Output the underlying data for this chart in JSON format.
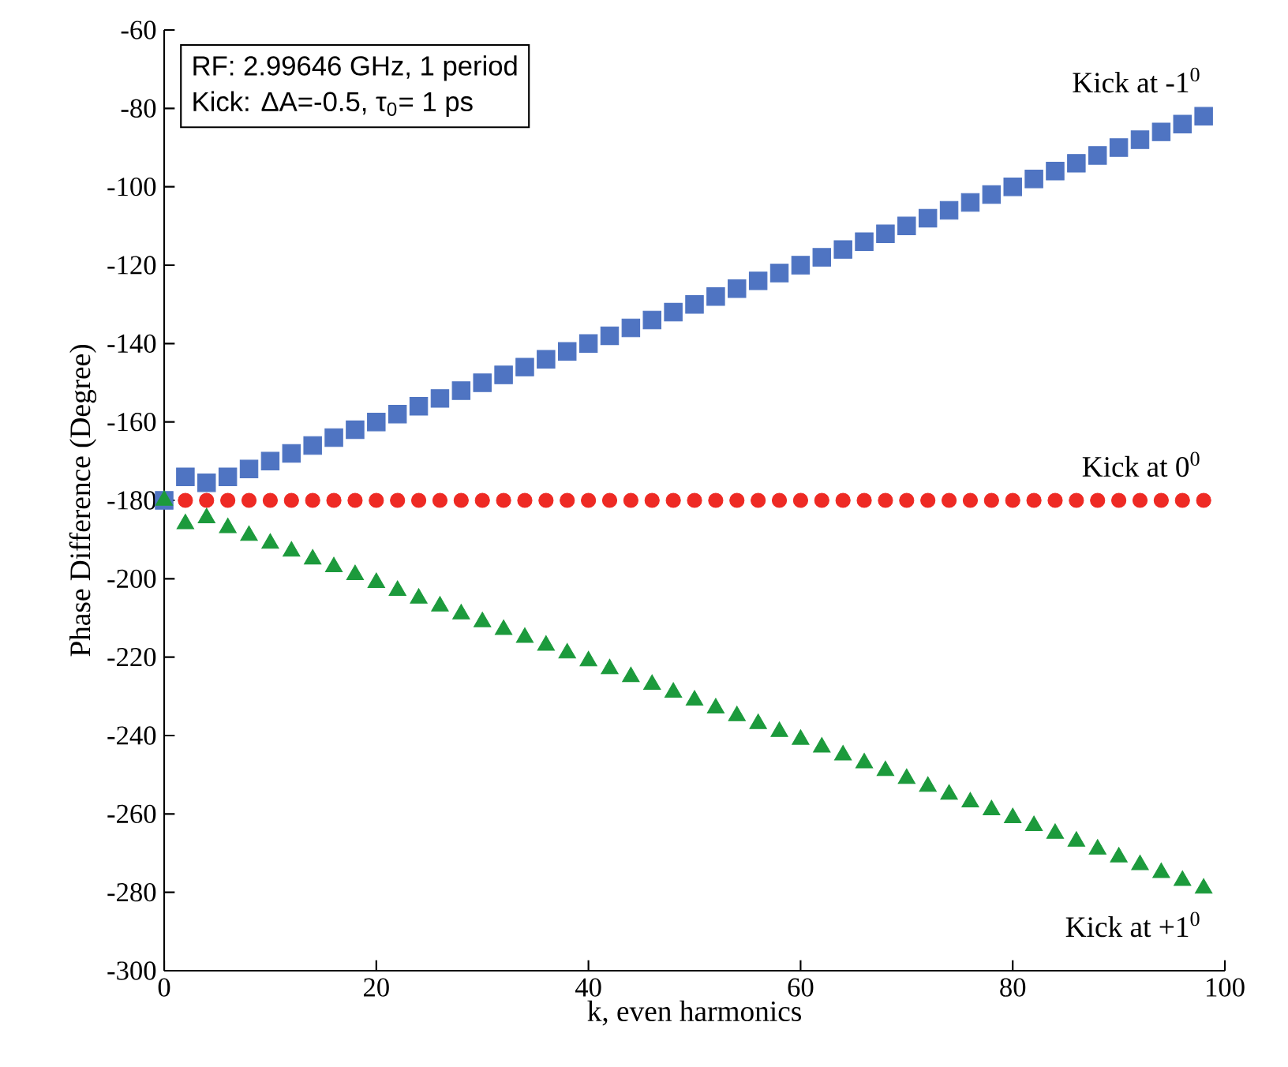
{
  "chart_data": {
    "type": "scatter",
    "xlabel": "k, even harmonics",
    "ylabel": "Phase Difference (Degree)",
    "annotations": [
      "RF: 2.99646 GHz, 1 period",
      "Kick: ΔA=-0.5, τ$_{0}$= 1 ps"
    ],
    "x": [
      0,
      2,
      4,
      6,
      8,
      10,
      12,
      14,
      16,
      18,
      20,
      22,
      24,
      26,
      28,
      30,
      32,
      34,
      36,
      38,
      40,
      42,
      44,
      46,
      48,
      50,
      52,
      54,
      56,
      58,
      60,
      62,
      64,
      66,
      68,
      70,
      72,
      74,
      76,
      78,
      80,
      82,
      84,
      86,
      88,
      90,
      92,
      94,
      96,
      98
    ],
    "series": [
      {
        "name": "Kick at -1$^{0}$",
        "color": "#4f74c2",
        "marker": "square",
        "values": [
          -180,
          -174,
          -175.5,
          -174,
          -172,
          -170,
          -168,
          -166,
          -164,
          -162,
          -160,
          -158,
          -156,
          -154,
          -152,
          -150,
          -148,
          -146,
          -144,
          -142,
          -140,
          -138,
          -136,
          -134,
          -132,
          -130,
          -128,
          -126,
          -124,
          -122,
          -120,
          -118,
          -116,
          -114,
          -112,
          -110,
          -108,
          -106,
          -104,
          -102,
          -100,
          -98,
          -96,
          -94,
          -92,
          -90,
          -88,
          -86,
          -84,
          -82
        ]
      },
      {
        "name": "Kick at 0$^{0}$",
        "color": "#ee2a24",
        "marker": "circle",
        "values": [
          null,
          -180,
          -180,
          -180,
          -180,
          -180,
          -180,
          -180,
          -180,
          -180,
          -180,
          -180,
          -180,
          -180,
          -180,
          -180,
          -180,
          -180,
          -180,
          -180,
          -180,
          -180,
          -180,
          -180,
          -180,
          -180,
          -180,
          -180,
          -180,
          -180,
          -180,
          -180,
          -180,
          -180,
          -180,
          -180,
          -180,
          -180,
          -180,
          -180,
          -180,
          -180,
          -180,
          -180,
          -180,
          -180,
          -180,
          -180,
          -180,
          -180
        ]
      },
      {
        "name": "Kick at +1$^{0}$",
        "color": "#1c9a3c",
        "marker": "triangle",
        "values": [
          -180,
          -186,
          -184.5,
          -187,
          -189,
          -191,
          -193,
          -195,
          -197,
          -199,
          -201,
          -203,
          -205,
          -207,
          -209,
          -211,
          -213,
          -215,
          -217,
          -219,
          -221,
          -223,
          -225,
          -227,
          -229,
          -231,
          -233,
          -235,
          -237,
          -239,
          -241,
          -243,
          -245,
          -247,
          -249,
          -251,
          -253,
          -255,
          -257,
          -259,
          -261,
          -263,
          -265,
          -267,
          -269,
          -271,
          -273,
          -275,
          -277,
          -279
        ]
      }
    ],
    "xlim": [
      0,
      100
    ],
    "ylim": [
      -300,
      -60
    ],
    "xticks": [
      0,
      20,
      40,
      60,
      80,
      100
    ],
    "yticks": [
      -300,
      -280,
      -260,
      -240,
      -220,
      -200,
      -180,
      -160,
      -140,
      -120,
      -100,
      -80,
      -60
    ],
    "grid": false,
    "legend": false
  }
}
